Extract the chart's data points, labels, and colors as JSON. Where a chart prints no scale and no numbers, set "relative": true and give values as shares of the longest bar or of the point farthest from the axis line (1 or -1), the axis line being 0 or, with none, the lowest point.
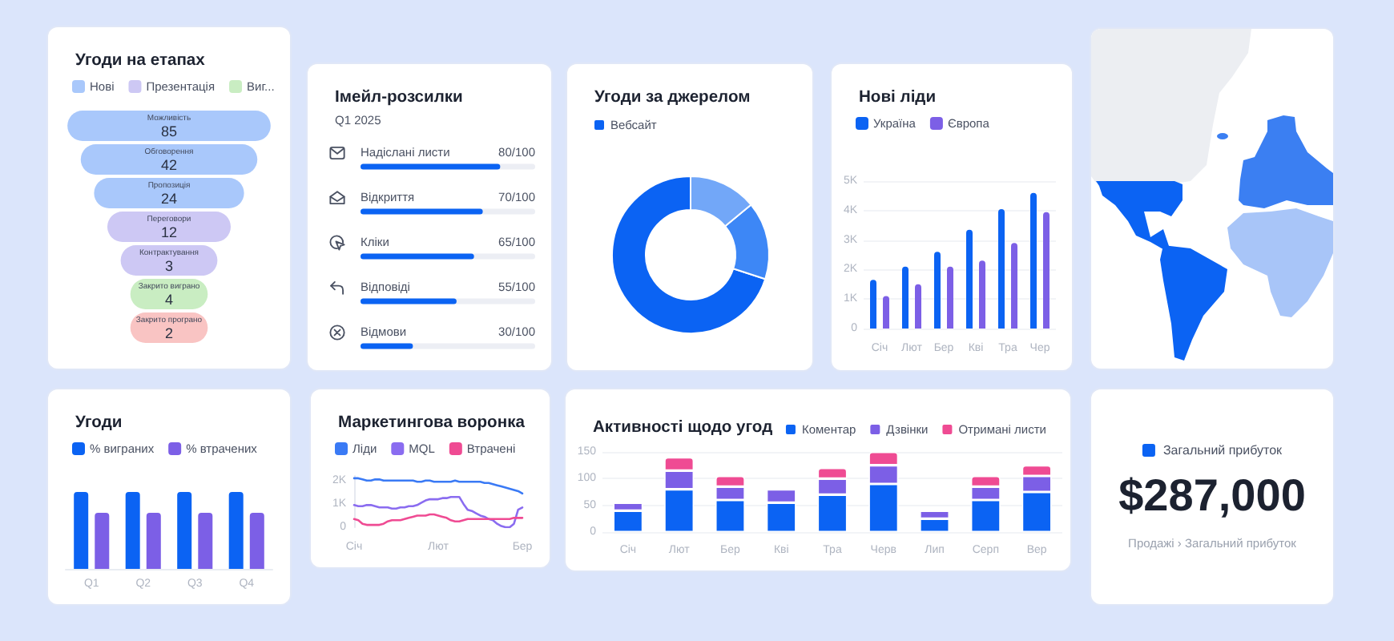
{
  "chart_data": [
    {
      "type": "other",
      "title": "Угоди на етапах",
      "categories": [
        "Можливість",
        "Обговорення",
        "Пропозиція",
        "Переговори",
        "Контрактування",
        "Закрито виграно",
        "Закрито програно"
      ],
      "series": [
        {
          "name": "Нові",
          "color": "#a9c8fb",
          "values": [
            85,
            42,
            24,
            null,
            null,
            null,
            null
          ]
        },
        {
          "name": "Презентація",
          "color": "#cdc8f4",
          "values": [
            null,
            null,
            null,
            12,
            3,
            null,
            null
          ]
        },
        {
          "name": "Виг...",
          "color": "#c9edc2",
          "values": [
            null,
            null,
            null,
            null,
            null,
            4,
            null
          ]
        },
        {
          "color": "#f9c4c3",
          "values": [
            null,
            null,
            null,
            null,
            null,
            null,
            2
          ]
        }
      ],
      "data_labels": true,
      "legend": "top left"
    },
    {
      "type": "bar",
      "orientation": "horizontal",
      "title": "Імейл-розсилки",
      "subtitle": "Q1 2025",
      "categories": [
        "Надіслані листи",
        "Відкриття",
        "Кліки",
        "Відповіді",
        "Відмови"
      ],
      "values": [
        80,
        70,
        65,
        55,
        30
      ],
      "value_labels": [
        "80/100",
        "70/100",
        "65/100",
        "55/100",
        "30/100"
      ],
      "color": "#0b63f3",
      "xlim": [
        0,
        100
      ],
      "tick_labels": "y"
    },
    {
      "type": "donut",
      "title": "Угоди за джерелом",
      "categories": [
        "Вебсайт",
        null,
        null
      ],
      "values": [
        70,
        16,
        14
      ],
      "colors": [
        "#0b63f3",
        "#3d87f6",
        "#72a7f8"
      ],
      "legend": "top left"
    },
    {
      "type": "bar",
      "title": "Нові ліди",
      "categories": [
        "Січ",
        "Лют",
        "Бер",
        "Кві",
        "Тра",
        "Чер"
      ],
      "series": [
        {
          "name": "Україна",
          "color": "#0b63f3",
          "values": [
            1650,
            2100,
            2600,
            3350,
            4050,
            4600
          ]
        },
        {
          "name": "Європа",
          "color": "#7c5fe6",
          "values": [
            1100,
            1500,
            2100,
            2300,
            2900,
            3950
          ]
        }
      ],
      "ylim": [
        0,
        5000
      ],
      "yticks": [
        0,
        {
          "value": 1000,
          "label": "1K"
        },
        {
          "value": 2000,
          "label": "2K"
        },
        {
          "value": 3000,
          "label": "3K"
        },
        {
          "value": 4000,
          "label": "4K"
        },
        {
          "value": 5000,
          "label": "5K"
        }
      ],
      "grid": "y",
      "legend": "top left"
    },
    {
      "type": "bar",
      "title": "Угоди",
      "categories": [
        "Q1",
        "Q2",
        "Q3",
        "Q4"
      ],
      "series": [
        {
          "name": "% виграних",
          "color": "#0b63f3",
          "values": [
            1,
            1,
            1,
            1
          ]
        },
        {
          "name": "% втрачених",
          "color": "#7c5fe6",
          "values": [
            0.73,
            0.73,
            0.73,
            0.73
          ]
        }
      ],
      "relative": true,
      "legend": "top left"
    },
    {
      "type": "line",
      "title": "Маркетингова воронка",
      "categories": [
        "Січ",
        null,
        null,
        null,
        null,
        null,
        null,
        null,
        null,
        null,
        null,
        null,
        null,
        null,
        null,
        null,
        null,
        null,
        null,
        null,
        "Лют",
        null,
        null,
        null,
        null,
        null,
        null,
        null,
        null,
        null,
        null,
        null,
        null,
        null,
        null,
        null,
        null,
        null,
        null,
        null,
        "Бер"
      ],
      "series": [
        {
          "name": "Ліди",
          "color": "#3a7af5",
          "values": [
            2100,
            2100,
            2050,
            2000,
            2000,
            2050,
            2050,
            2000,
            2000,
            2000,
            2000,
            2000,
            2000,
            2000,
            2000,
            1950,
            1950,
            2000,
            2000,
            1950,
            1950,
            1950,
            1950,
            1950,
            2000,
            1950,
            1950,
            1950,
            1950,
            1950,
            1950,
            1900,
            1900,
            1850,
            1800,
            1750,
            1700,
            1650,
            1600,
            1550,
            1450
          ]
        },
        {
          "name": "MQL",
          "color": "#8a6cf0",
          "values": [
            950,
            900,
            900,
            950,
            950,
            900,
            850,
            850,
            850,
            800,
            800,
            850,
            850,
            900,
            900,
            950,
            1050,
            1150,
            1200,
            1200,
            1200,
            1250,
            1250,
            1300,
            1300,
            1300,
            1000,
            750,
            700,
            600,
            500,
            450,
            350,
            300,
            150,
            50,
            0,
            0,
            150,
            750,
            850
          ]
        },
        {
          "name": "Втрачені",
          "color": "#ef4b93",
          "values": [
            350,
            300,
            150,
            100,
            100,
            100,
            100,
            150,
            250,
            300,
            300,
            300,
            350,
            400,
            450,
            500,
            500,
            500,
            550,
            550,
            500,
            450,
            400,
            300,
            250,
            250,
            300,
            350,
            350,
            350,
            350,
            350,
            350,
            350,
            350,
            350,
            350,
            350,
            400,
            400,
            400
          ]
        }
      ],
      "ylim": [
        0,
        2200
      ],
      "yticks": [
        0,
        {
          "value": 1000,
          "label": "1K"
        },
        {
          "value": 2000,
          "label": "2K"
        }
      ],
      "marker": "none",
      "legend": "top left"
    },
    {
      "type": "bar",
      "stacked": true,
      "title": "Активності щодо угод",
      "categories": [
        "Січ",
        "Лют",
        "Бер",
        "Кві",
        "Тра",
        "Черв",
        "Лип",
        "Серп",
        "Вер"
      ],
      "series": [
        {
          "name": "Коментар",
          "color": "#0b63f3",
          "values": [
            40,
            80,
            60,
            55,
            70,
            90,
            25,
            60,
            75
          ]
        },
        {
          "name": "Дзвінки",
          "color": "#7c5fe6",
          "values": [
            15,
            35,
            25,
            25,
            30,
            35,
            15,
            25,
            30
          ]
        },
        {
          "name": "Отримані листи",
          "color": "#ef4b93",
          "values": [
            null,
            25,
            20,
            null,
            20,
            25,
            null,
            20,
            20
          ]
        }
      ],
      "ylim": [
        0,
        150
      ],
      "yticks": [
        0,
        50,
        100,
        150
      ],
      "grid": "y",
      "legend": "top right"
    },
    {
      "type": "other",
      "series": [
        {
          "name": "Загальний прибуток",
          "color": "#0b63f3"
        }
      ],
      "annotations": [
        "$287,000",
        "Продажі › Загальний прибуток"
      ],
      "legend": "top"
    }
  ]
}
